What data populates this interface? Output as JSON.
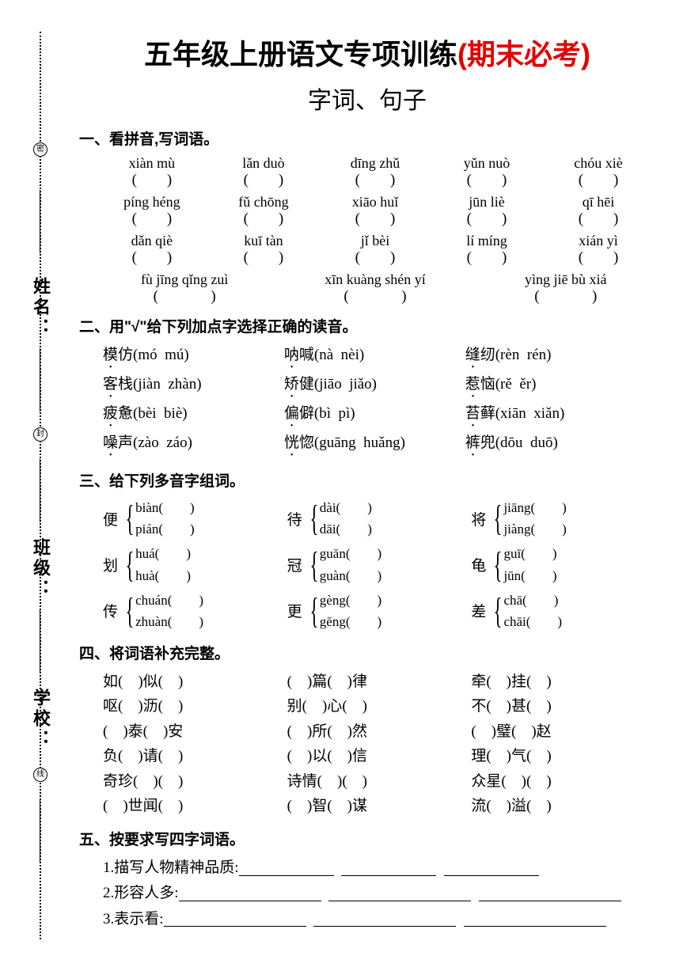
{
  "title": {
    "main": "五年级上册语文专项训练",
    "highlight": "(期末必考)",
    "subtitle": "字词、句子"
  },
  "binding": {
    "seals": [
      "密",
      "封",
      "线"
    ],
    "labels": [
      "姓名：",
      "班级：",
      "学校："
    ]
  },
  "sections": {
    "s1": {
      "title": "一、看拼音,写词语。",
      "rows": [
        [
          "xiàn mù",
          "lǎn duò",
          "dīng zhǔ",
          "yǔn nuò",
          "chóu xiè"
        ],
        [
          "píng héng",
          "fǔ chōng",
          "xiāo huǐ",
          "jūn liè",
          "qī hēi"
        ],
        [
          "dǎn qiè",
          "kuī tàn",
          "jǐ bèi",
          "lí míng",
          "xián yì"
        ],
        [
          "fù jīng qǐng zuì",
          "xīn kuàng shén yí",
          "yìng jiē bù xiá"
        ]
      ]
    },
    "s2": {
      "title": "二、用\"√\"给下列加点字选择正确的读音。",
      "rows": [
        [
          {
            "c": "模",
            "w": "仿",
            "o": "(mó  mú)"
          },
          {
            "c": "呐",
            "w": "喊",
            "o": "(nà  nèi)"
          },
          {
            "c": "缝",
            "w": "纫",
            "o": "(rèn  rén)"
          }
        ],
        [
          {
            "c": "客",
            "w": "栈",
            "o": "(jiàn  zhàn)"
          },
          {
            "c": "矫",
            "w": "健",
            "o": "(jiāo  jiǎo)"
          },
          {
            "c": "惹",
            "w": "恼",
            "o": "(rě  ěr)"
          }
        ],
        [
          {
            "c": "疲",
            "w": "惫",
            "o": "(bèi  biè)"
          },
          {
            "c": "偏",
            "w": "僻",
            "o": "(bì  pì)"
          },
          {
            "c": "苔",
            "w": "藓",
            "o": "(xiān  xiǎn)"
          }
        ],
        [
          {
            "c": "噪",
            "w": "声",
            "o": "(zào  záo)"
          },
          {
            "c": "恍",
            "w": "惚",
            "o": "(guāng  huǎng)"
          },
          {
            "c": "裤",
            "w": "兜",
            "o": "(dōu  duō)"
          }
        ]
      ]
    },
    "s3": {
      "title": "三、给下列多音字组词。",
      "rows": [
        [
          {
            "char": "便",
            "r": [
              "biàn",
              "pián"
            ]
          },
          {
            "char": "待",
            "r": [
              "dài",
              "dāi"
            ]
          },
          {
            "char": "将",
            "r": [
              "jiāng",
              "jiàng"
            ]
          }
        ],
        [
          {
            "char": "划",
            "r": [
              "huá",
              "huà"
            ]
          },
          {
            "char": "冠",
            "r": [
              "guān",
              "guàn"
            ]
          },
          {
            "char": "龟",
            "r": [
              "guī",
              "jūn"
            ]
          }
        ],
        [
          {
            "char": "传",
            "r": [
              "chuán",
              "zhuàn"
            ]
          },
          {
            "char": "更",
            "r": [
              "gèng",
              "gēng"
            ]
          },
          {
            "char": "差",
            "r": [
              "chā",
              "chāi"
            ]
          }
        ]
      ]
    },
    "s4": {
      "title": "四、将词语补充完整。",
      "rows": [
        [
          "如(    )似(    )",
          "(    )篇(    )律",
          "牵(    )挂(    )"
        ],
        [
          "呕(    )沥(    )",
          "别(    )心(    )",
          "不(    )甚(    )"
        ],
        [
          "(    )泰(    )安",
          "(    )所(    )然",
          "(    )璧(    )赵"
        ],
        [
          "负(    )请(    )",
          "(    )以(    )信",
          "理(    )气(    )"
        ],
        [
          "奇珍(    )(    )",
          "诗情(    )(    )",
          "众星(    )(    )"
        ],
        [
          "(    )世闻(    )",
          "(    )智(    )谋",
          "流(    )溢(    )"
        ]
      ]
    },
    "s5": {
      "title": "五、按要求写四字词语。",
      "items": [
        "1.描写人物精神品质:",
        "2.形容人多:",
        "3.表示看:"
      ]
    }
  },
  "colors": {
    "highlight": "#e30000",
    "text": "#000000",
    "bg": "#ffffff"
  }
}
